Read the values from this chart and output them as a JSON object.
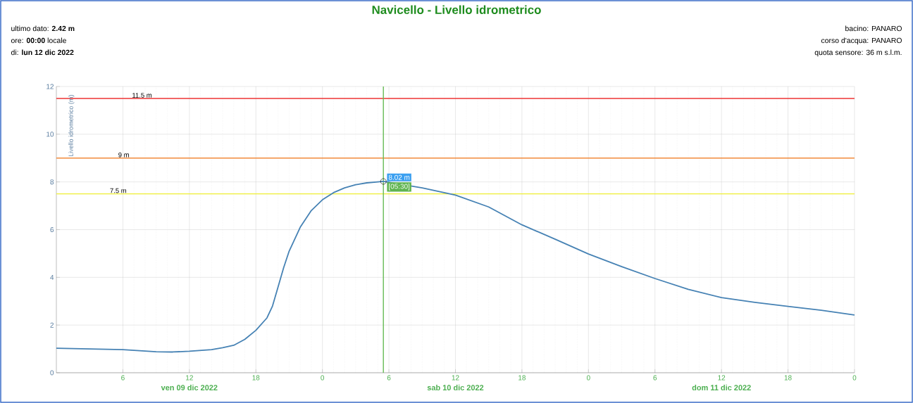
{
  "chart_data": {
    "type": "line",
    "title": "Navicello - Livello idrometrico",
    "ylabel": "Livello idrometrico (m)",
    "annotations": [
      "ultimo dato: **2.42 m**",
      "ore: **00:00** locale",
      "di: **lun 12 dic 2022**",
      "bacino: PANARO",
      "corso d'acqua: PANARO",
      "quota sensore: 36 m s.l.m.",
      "ven 09 dic 2022",
      "sab 10 dic 2022",
      "dom 11 dic 2022",
      {
        "text": "8.02 m",
        "x": "2022-12-10T05:30",
        "y": 8.02
      },
      {
        "text": "[05:30]",
        "x": "2022-12-10T05:30",
        "y": 8.02
      }
    ],
    "x": [
      "2022-12-09T00:00",
      "2022-12-09T03:00",
      "2022-12-09T06:00",
      "2022-12-09T09:00",
      "2022-12-09T10:30",
      "2022-12-09T12:00",
      "2022-12-09T14:00",
      "2022-12-09T15:00",
      "2022-12-09T16:00",
      "2022-12-09T17:00",
      "2022-12-09T18:00",
      "2022-12-09T19:00",
      "2022-12-09T19:30",
      "2022-12-09T20:00",
      "2022-12-09T20:30",
      "2022-12-09T21:00",
      "2022-12-09T22:00",
      "2022-12-09T23:00",
      "2022-12-10T00:00",
      "2022-12-10T01:00",
      "2022-12-10T02:00",
      "2022-12-10T03:00",
      "2022-12-10T04:00",
      "2022-12-10T05:00",
      "2022-12-10T05:30",
      "2022-12-10T09:00",
      "2022-12-10T12:00",
      "2022-12-10T15:00",
      "2022-12-10T18:00",
      "2022-12-10T21:00",
      "2022-12-11T00:00",
      "2022-12-11T03:00",
      "2022-12-11T06:00",
      "2022-12-11T09:00",
      "2022-12-11T12:00",
      "2022-12-11T15:00",
      "2022-12-11T18:00",
      "2022-12-11T21:00",
      "2022-12-12T00:00"
    ],
    "series": [
      {
        "color": "#4682b4",
        "values": [
          1.03,
          1.0,
          0.97,
          0.88,
          0.87,
          0.9,
          0.97,
          1.05,
          1.15,
          1.4,
          1.78,
          2.3,
          2.8,
          3.6,
          4.4,
          5.1,
          6.1,
          6.8,
          7.25,
          7.55,
          7.75,
          7.88,
          7.96,
          8.0,
          8.02,
          7.75,
          7.45,
          6.95,
          6.2,
          5.6,
          4.98,
          4.45,
          3.95,
          3.5,
          3.15,
          2.95,
          2.78,
          2.62,
          2.42
        ]
      }
    ],
    "xlim": [
      "2022-12-09T00:00",
      "2022-12-12T00:00"
    ],
    "ylim": [
      0,
      12
    ],
    "xticks": [
      {
        "value": "2022-12-09T06:00",
        "label": "6"
      },
      {
        "value": "2022-12-09T12:00",
        "label": "12"
      },
      {
        "value": "2022-12-09T18:00",
        "label": "18"
      },
      {
        "value": "2022-12-10T00:00",
        "label": "0"
      },
      {
        "value": "2022-12-10T06:00",
        "label": "6"
      },
      {
        "value": "2022-12-10T12:00",
        "label": "12"
      },
      {
        "value": "2022-12-10T18:00",
        "label": "18"
      },
      {
        "value": "2022-12-11T00:00",
        "label": "0"
      },
      {
        "value": "2022-12-11T06:00",
        "label": "6"
      },
      {
        "value": "2022-12-11T12:00",
        "label": "12"
      },
      {
        "value": "2022-12-11T18:00",
        "label": "18"
      },
      {
        "value": "2022-12-12T00:00",
        "label": "0"
      }
    ],
    "yticks": [
      0,
      2,
      4,
      6,
      8,
      10,
      12
    ],
    "ref_lines": [
      {
        "axis": "y",
        "value": 11.5,
        "label": "11.5 m",
        "color": "#ee3333"
      },
      {
        "axis": "y",
        "value": 9,
        "label": "9 m",
        "color": "#f28a3a"
      },
      {
        "axis": "y",
        "value": 7.5,
        "label": "7.5 m",
        "color": "#eeee33"
      },
      {
        "axis": "x",
        "value": "2022-12-10T05:30",
        "color": "#66bb55"
      }
    ],
    "grid": true,
    "marker": "none",
    "line_style": "solid"
  }
}
